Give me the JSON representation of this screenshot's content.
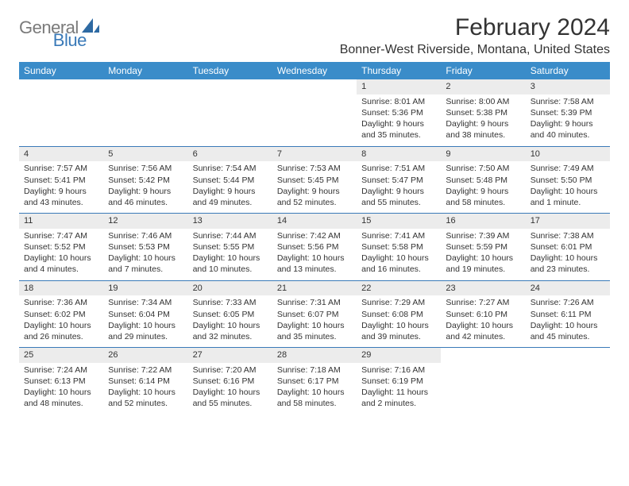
{
  "brand": {
    "part1": "General",
    "part2": "Blue"
  },
  "title": "February 2024",
  "location": "Bonner-West Riverside, Montana, United States",
  "colors": {
    "header_bg": "#3a8cc9",
    "header_text": "#ffffff",
    "week_divider": "#3a7ab8",
    "daynum_bg": "#ececec",
    "logo_gray": "#7a7a7a",
    "logo_blue": "#3a7ab8"
  },
  "day_headers": [
    "Sunday",
    "Monday",
    "Tuesday",
    "Wednesday",
    "Thursday",
    "Friday",
    "Saturday"
  ],
  "weeks": [
    [
      null,
      null,
      null,
      null,
      {
        "n": "1",
        "sr": "8:01 AM",
        "ss": "5:36 PM",
        "dl": "9 hours and 35 minutes."
      },
      {
        "n": "2",
        "sr": "8:00 AM",
        "ss": "5:38 PM",
        "dl": "9 hours and 38 minutes."
      },
      {
        "n": "3",
        "sr": "7:58 AM",
        "ss": "5:39 PM",
        "dl": "9 hours and 40 minutes."
      }
    ],
    [
      {
        "n": "4",
        "sr": "7:57 AM",
        "ss": "5:41 PM",
        "dl": "9 hours and 43 minutes."
      },
      {
        "n": "5",
        "sr": "7:56 AM",
        "ss": "5:42 PM",
        "dl": "9 hours and 46 minutes."
      },
      {
        "n": "6",
        "sr": "7:54 AM",
        "ss": "5:44 PM",
        "dl": "9 hours and 49 minutes."
      },
      {
        "n": "7",
        "sr": "7:53 AM",
        "ss": "5:45 PM",
        "dl": "9 hours and 52 minutes."
      },
      {
        "n": "8",
        "sr": "7:51 AM",
        "ss": "5:47 PM",
        "dl": "9 hours and 55 minutes."
      },
      {
        "n": "9",
        "sr": "7:50 AM",
        "ss": "5:48 PM",
        "dl": "9 hours and 58 minutes."
      },
      {
        "n": "10",
        "sr": "7:49 AM",
        "ss": "5:50 PM",
        "dl": "10 hours and 1 minute."
      }
    ],
    [
      {
        "n": "11",
        "sr": "7:47 AM",
        "ss": "5:52 PM",
        "dl": "10 hours and 4 minutes."
      },
      {
        "n": "12",
        "sr": "7:46 AM",
        "ss": "5:53 PM",
        "dl": "10 hours and 7 minutes."
      },
      {
        "n": "13",
        "sr": "7:44 AM",
        "ss": "5:55 PM",
        "dl": "10 hours and 10 minutes."
      },
      {
        "n": "14",
        "sr": "7:42 AM",
        "ss": "5:56 PM",
        "dl": "10 hours and 13 minutes."
      },
      {
        "n": "15",
        "sr": "7:41 AM",
        "ss": "5:58 PM",
        "dl": "10 hours and 16 minutes."
      },
      {
        "n": "16",
        "sr": "7:39 AM",
        "ss": "5:59 PM",
        "dl": "10 hours and 19 minutes."
      },
      {
        "n": "17",
        "sr": "7:38 AM",
        "ss": "6:01 PM",
        "dl": "10 hours and 23 minutes."
      }
    ],
    [
      {
        "n": "18",
        "sr": "7:36 AM",
        "ss": "6:02 PM",
        "dl": "10 hours and 26 minutes."
      },
      {
        "n": "19",
        "sr": "7:34 AM",
        "ss": "6:04 PM",
        "dl": "10 hours and 29 minutes."
      },
      {
        "n": "20",
        "sr": "7:33 AM",
        "ss": "6:05 PM",
        "dl": "10 hours and 32 minutes."
      },
      {
        "n": "21",
        "sr": "7:31 AM",
        "ss": "6:07 PM",
        "dl": "10 hours and 35 minutes."
      },
      {
        "n": "22",
        "sr": "7:29 AM",
        "ss": "6:08 PM",
        "dl": "10 hours and 39 minutes."
      },
      {
        "n": "23",
        "sr": "7:27 AM",
        "ss": "6:10 PM",
        "dl": "10 hours and 42 minutes."
      },
      {
        "n": "24",
        "sr": "7:26 AM",
        "ss": "6:11 PM",
        "dl": "10 hours and 45 minutes."
      }
    ],
    [
      {
        "n": "25",
        "sr": "7:24 AM",
        "ss": "6:13 PM",
        "dl": "10 hours and 48 minutes."
      },
      {
        "n": "26",
        "sr": "7:22 AM",
        "ss": "6:14 PM",
        "dl": "10 hours and 52 minutes."
      },
      {
        "n": "27",
        "sr": "7:20 AM",
        "ss": "6:16 PM",
        "dl": "10 hours and 55 minutes."
      },
      {
        "n": "28",
        "sr": "7:18 AM",
        "ss": "6:17 PM",
        "dl": "10 hours and 58 minutes."
      },
      {
        "n": "29",
        "sr": "7:16 AM",
        "ss": "6:19 PM",
        "dl": "11 hours and 2 minutes."
      },
      null,
      null
    ]
  ],
  "labels": {
    "sunrise": "Sunrise:",
    "sunset": "Sunset:",
    "daylight": "Daylight:"
  }
}
